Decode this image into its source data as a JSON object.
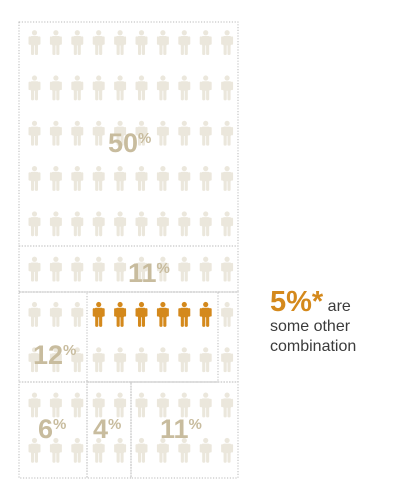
{
  "chart_data": {
    "type": "waffle",
    "unit": "people",
    "segments": [
      {
        "label": "50",
        "symbol": "%",
        "value": 50,
        "highlight": false
      },
      {
        "label": "11",
        "symbol": "%",
        "value": 11,
        "highlight": false
      },
      {
        "label": "12",
        "symbol": "%",
        "value": 12,
        "highlight": false
      },
      {
        "label": "5",
        "symbol": "%",
        "value": 5,
        "highlight": true
      },
      {
        "label": "6",
        "symbol": "%",
        "value": 6,
        "highlight": false
      },
      {
        "label": "4",
        "symbol": "%",
        "value": 4,
        "highlight": false
      },
      {
        "label": "11",
        "symbol": "%",
        "value": 11,
        "highlight": false
      }
    ],
    "colors": {
      "icon": "#ebe7dc",
      "highlight": "#d4891c",
      "label": "#c8bc9e",
      "border": "#b9b9b9"
    }
  },
  "callout": {
    "value": "5%",
    "star": "*",
    "text1": "are",
    "text2": "some other",
    "text3": "combination"
  }
}
